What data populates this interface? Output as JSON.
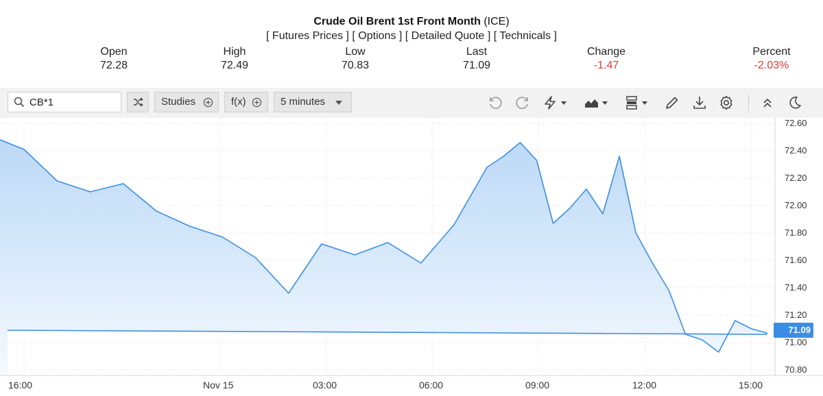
{
  "quote": {
    "title": "Crude Oil Brent 1st Front Month",
    "exchange": "(ICE)",
    "links": [
      "[ Futures Prices ]",
      "[ Options ]",
      "[ Detailed Quote ]",
      "[ Technicals ]"
    ],
    "stats": [
      {
        "label": "Open",
        "value": "72.28"
      },
      {
        "label": "High",
        "value": "72.49"
      },
      {
        "label": "Low",
        "value": "70.83"
      },
      {
        "label": "Last",
        "value": "71.09"
      },
      {
        "label": "Change",
        "value": "-1.47"
      },
      {
        "label": "Percent",
        "value": "-2.03%"
      }
    ]
  },
  "toolbar": {
    "symbol": "CB*1",
    "studies_label": "Studies",
    "fx_label": "f(x)",
    "interval_label": "5 minutes",
    "icons": [
      "shuffle-icon",
      "plus-circle-icon",
      "undo-icon",
      "redo-icon",
      "lightning-icon",
      "chart-type-icon",
      "layout-icon",
      "pencil-icon",
      "download-icon",
      "settings-icon",
      "collapse-icon",
      "dark-mode-icon"
    ]
  },
  "colors": {
    "line": "#3a8ee6",
    "area_top": "#bcd9f7",
    "area_bottom": "#f4f9fe",
    "negative": "#e53935",
    "last_badge": "#3a8ee6"
  },
  "chart_data": {
    "type": "area",
    "symbol": "CB*1",
    "interval": "5 minutes",
    "y_ticks": [
      "72.60",
      "72.40",
      "72.20",
      "72.00",
      "71.80",
      "71.60",
      "71.40",
      "71.20",
      "71.00",
      "70.80"
    ],
    "x_ticks": [
      "16:00",
      "Nov 15",
      "03:00",
      "06:00",
      "09:00",
      "12:00",
      "15:00"
    ],
    "last_value": "71.09",
    "ylim": [
      70.8,
      72.6
    ],
    "x": [
      "15:40",
      "16:00",
      "17:00",
      "18:00",
      "19:00",
      "20:00",
      "21:00",
      "22:00",
      "23:00",
      "00:00",
      "01:00",
      "02:00",
      "03:00",
      "04:00",
      "05:00",
      "06:00",
      "06:30",
      "07:00",
      "07:30",
      "08:00",
      "08:30",
      "09:00",
      "09:30",
      "10:00",
      "10:30",
      "11:00",
      "11:30",
      "12:00",
      "12:30",
      "13:00",
      "13:30",
      "14:00",
      "14:30",
      "15:00",
      "15:30"
    ],
    "values": [
      72.48,
      72.41,
      72.18,
      72.1,
      72.16,
      71.96,
      71.85,
      71.77,
      71.62,
      71.36,
      71.72,
      71.64,
      71.73,
      71.58,
      71.86,
      72.28,
      72.36,
      72.46,
      72.33,
      71.87,
      71.98,
      72.12,
      71.94,
      72.36,
      71.8,
      71.58,
      71.38,
      71.06,
      71.02,
      70.93,
      71.16,
      71.1,
      71.07,
      71.06,
      71.09
    ]
  }
}
